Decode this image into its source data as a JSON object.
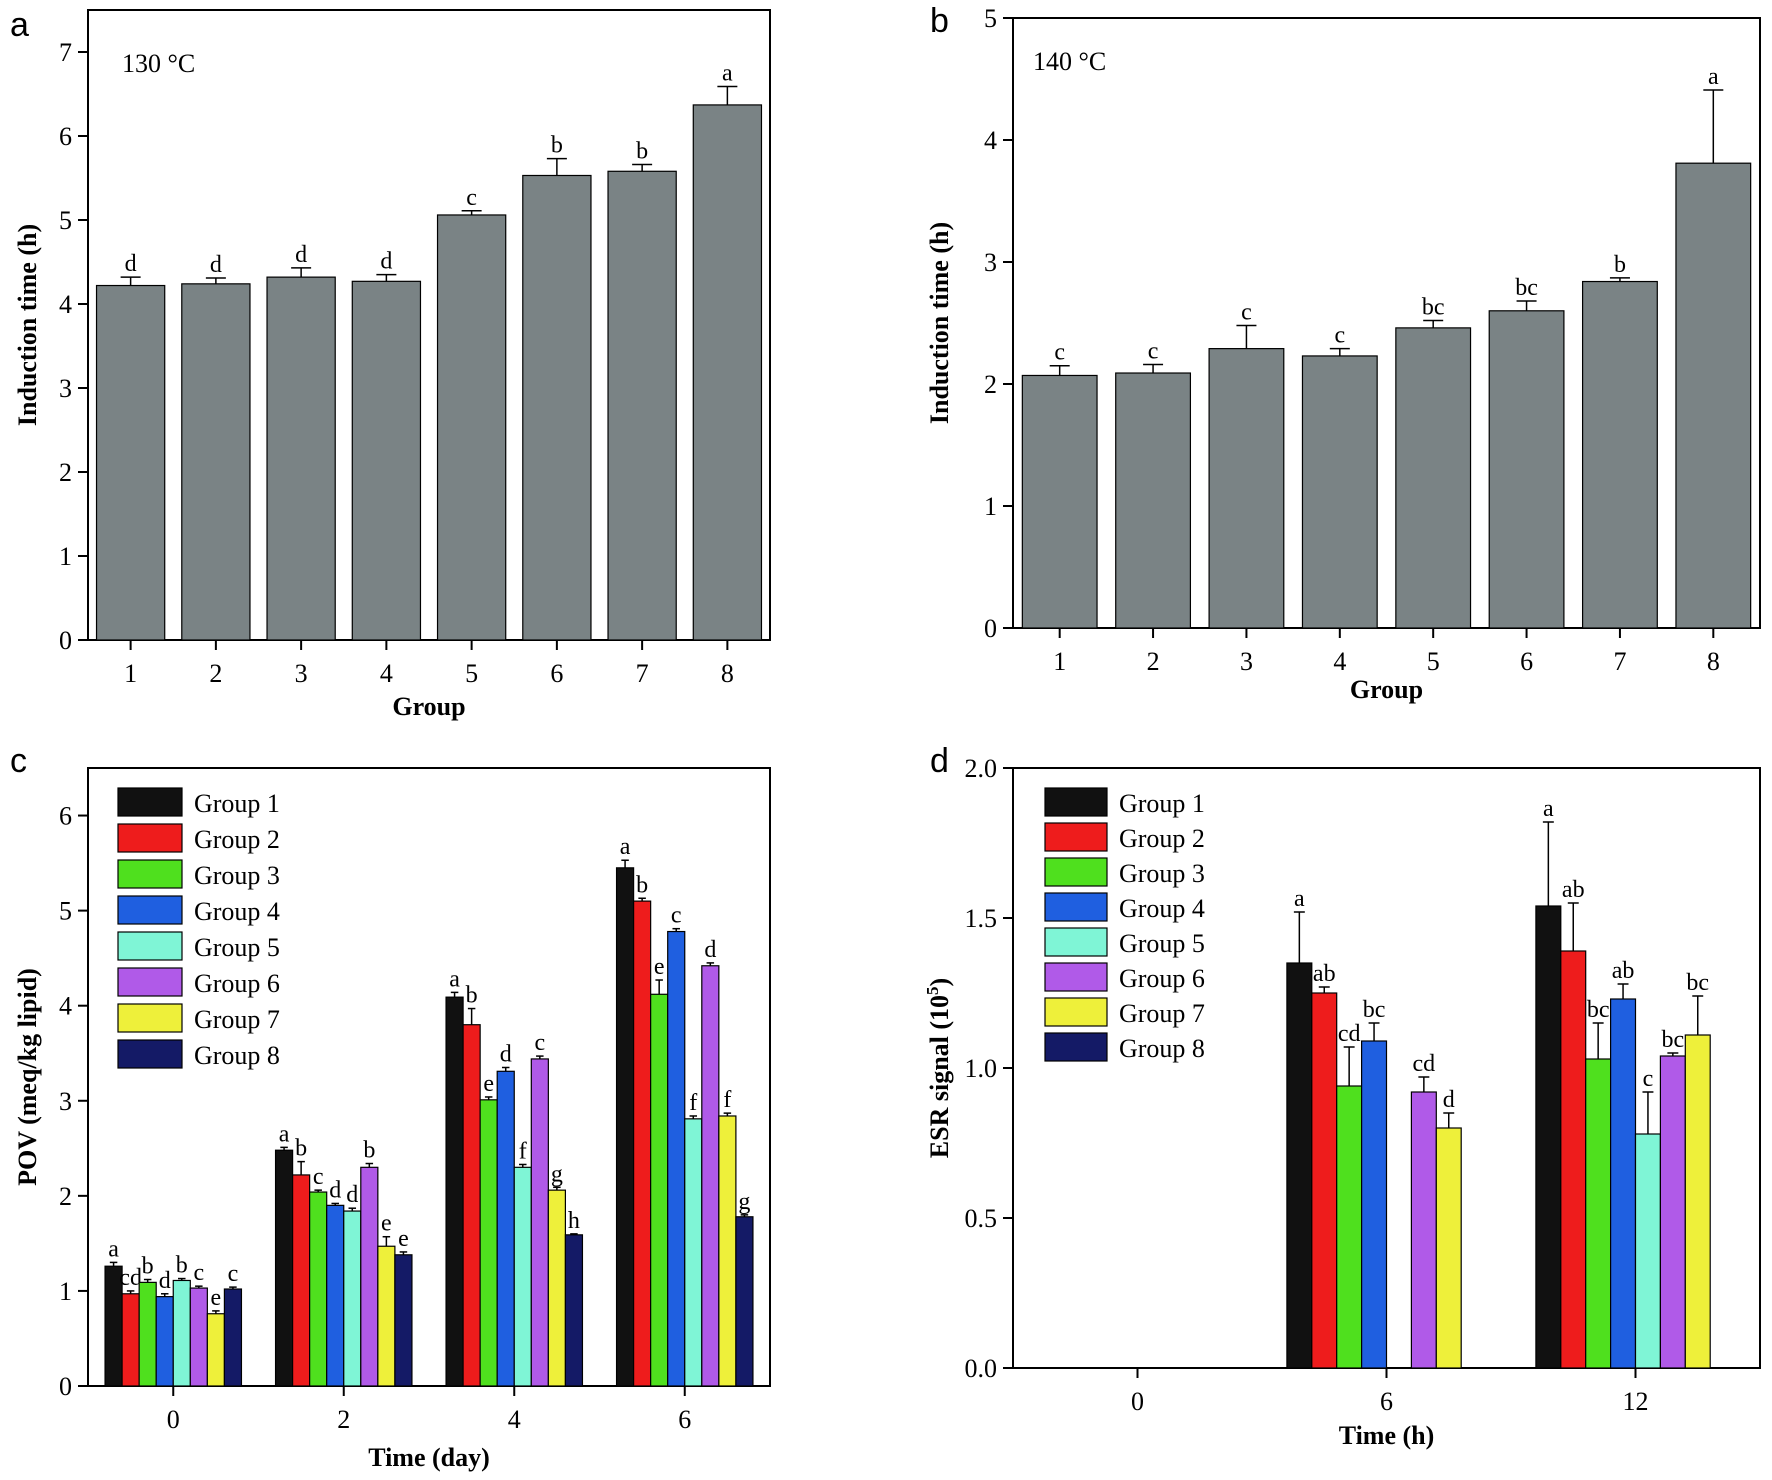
{
  "chart_data": [
    {
      "panel": "a",
      "type": "bar",
      "annotation": "130 °C",
      "xlabel": "Group",
      "ylabel": "Induction time (h)",
      "ylim": [
        0,
        7.5
      ],
      "yticks": [
        0,
        1,
        2,
        3,
        4,
        5,
        6,
        7
      ],
      "categories": [
        "1",
        "2",
        "3",
        "4",
        "5",
        "6",
        "7",
        "8"
      ],
      "series": [
        {
          "color": "#7a8385",
          "values": [
            4.22,
            4.24,
            4.32,
            4.27,
            5.06,
            5.53,
            5.58,
            6.37
          ],
          "errors": [
            0.1,
            0.07,
            0.11,
            0.08,
            0.05,
            0.2,
            0.08,
            0.22
          ],
          "labels": [
            "d",
            "d",
            "d",
            "d",
            "c",
            "b",
            "b",
            "a"
          ]
        }
      ],
      "legend": false
    },
    {
      "panel": "b",
      "type": "bar",
      "annotation": "140 °C",
      "xlabel": "Group",
      "ylabel": "Induction time (h)",
      "ylim": [
        0,
        5
      ],
      "yticks": [
        0,
        1,
        2,
        3,
        4,
        5
      ],
      "categories": [
        "1",
        "2",
        "3",
        "4",
        "5",
        "6",
        "7",
        "8"
      ],
      "series": [
        {
          "color": "#7a8385",
          "values": [
            2.07,
            2.09,
            2.29,
            2.23,
            2.46,
            2.6,
            2.84,
            3.81
          ],
          "errors": [
            0.08,
            0.07,
            0.19,
            0.06,
            0.06,
            0.08,
            0.03,
            0.6
          ],
          "labels": [
            "c",
            "c",
            "c",
            "c",
            "bc",
            "bc",
            "b",
            "a"
          ]
        }
      ],
      "legend": false
    },
    {
      "panel": "c",
      "type": "bar",
      "xlabel": "Time (day)",
      "ylabel": "POV (meq/kg lipid)",
      "ylim": [
        0,
        6.5
      ],
      "yticks": [
        0,
        1,
        2,
        3,
        4,
        5,
        6
      ],
      "categories": [
        "0",
        "2",
        "4",
        "6"
      ],
      "legend": "top-left",
      "series": [
        {
          "name": "Group 1",
          "color": "#111111",
          "values": [
            1.26,
            2.48,
            4.09,
            5.45
          ],
          "errors": [
            0.04,
            0.03,
            0.05,
            0.08
          ],
          "labels": [
            "a",
            "a",
            "a",
            "a"
          ]
        },
        {
          "name": "Group 2",
          "color": "#ee1c1c",
          "values": [
            0.97,
            2.22,
            3.8,
            5.1
          ],
          "errors": [
            0.03,
            0.14,
            0.17,
            0.03
          ],
          "labels": [
            "cd",
            "b",
            "b",
            "b"
          ]
        },
        {
          "name": "Group 3",
          "color": "#4fe01e",
          "values": [
            1.09,
            2.04,
            3.01,
            4.12
          ],
          "errors": [
            0.03,
            0.02,
            0.03,
            0.15
          ],
          "labels": [
            "b",
            "c",
            "e",
            "e"
          ]
        },
        {
          "name": "Group 4",
          "color": "#1f5fe0",
          "values": [
            0.94,
            1.9,
            3.31,
            4.78
          ],
          "errors": [
            0.03,
            0.02,
            0.04,
            0.03
          ],
          "labels": [
            "d",
            "d",
            "d",
            "c"
          ]
        },
        {
          "name": "Group 5",
          "color": "#7ff5d6",
          "values": [
            1.11,
            1.84,
            2.3,
            2.81
          ],
          "errors": [
            0.02,
            0.03,
            0.03,
            0.03
          ],
          "labels": [
            "b",
            "d",
            "f",
            "f"
          ]
        },
        {
          "name": "Group 6",
          "color": "#b05ae8",
          "values": [
            1.03,
            2.3,
            3.44,
            4.42
          ],
          "errors": [
            0.02,
            0.04,
            0.03,
            0.03
          ],
          "labels": [
            "c",
            "b",
            "c",
            "d"
          ]
        },
        {
          "name": "Group 7",
          "color": "#eef03a",
          "values": [
            0.76,
            1.47,
            2.06,
            2.84
          ],
          "errors": [
            0.03,
            0.1,
            0.03,
            0.03
          ],
          "labels": [
            "e",
            "e",
            "g",
            "f"
          ]
        },
        {
          "name": "Group 8",
          "color": "#141a66",
          "values": [
            1.02,
            1.38,
            1.59,
            1.78
          ],
          "errors": [
            0.02,
            0.03,
            0.01,
            0.02
          ],
          "labels": [
            "c",
            "e",
            "h",
            "g"
          ]
        }
      ]
    },
    {
      "panel": "d",
      "type": "bar",
      "xlabel": "Time (h)",
      "ylabel": "ESR signal (10",
      "ylabel_sup": "5",
      "ylabel_end": ")",
      "ylim": [
        0,
        2.0
      ],
      "yticks": [
        "0.0",
        "0.5",
        "1.0",
        "1.5",
        "2.0"
      ],
      "categories": [
        "0",
        "6",
        "12"
      ],
      "legend": "top-left",
      "series": [
        {
          "name": "Group 1",
          "color": "#111111",
          "values": [
            null,
            1.35,
            1.54
          ],
          "errors": [
            null,
            0.17,
            0.28
          ],
          "labels": [
            "",
            "a",
            "a"
          ]
        },
        {
          "name": "Group 2",
          "color": "#ee1c1c",
          "values": [
            null,
            1.25,
            1.39
          ],
          "errors": [
            null,
            0.02,
            0.16
          ],
          "labels": [
            "",
            "ab",
            "ab"
          ]
        },
        {
          "name": "Group 3",
          "color": "#4fe01e",
          "values": [
            null,
            0.94,
            1.03
          ],
          "errors": [
            null,
            0.13,
            0.12
          ],
          "labels": [
            "",
            "cd",
            "bc"
          ]
        },
        {
          "name": "Group 4",
          "color": "#1f5fe0",
          "values": [
            null,
            1.09,
            1.23
          ],
          "errors": [
            null,
            0.06,
            0.05
          ],
          "labels": [
            "",
            "bc",
            "ab"
          ]
        },
        {
          "name": "Group 5",
          "color": "#7ff5d6",
          "values": [
            null,
            null,
            0.78
          ],
          "errors": [
            null,
            null,
            0.14
          ],
          "labels": [
            "",
            "",
            "c"
          ]
        },
        {
          "name": "Group 6",
          "color": "#b05ae8",
          "values": [
            null,
            0.92,
            1.04
          ],
          "errors": [
            null,
            0.05,
            0.01
          ],
          "labels": [
            "",
            "cd",
            "bc"
          ]
        },
        {
          "name": "Group 7",
          "color": "#eef03a",
          "values": [
            null,
            0.8,
            1.11
          ],
          "errors": [
            null,
            0.05,
            0.13
          ],
          "labels": [
            "",
            "d",
            "bc"
          ]
        },
        {
          "name": "Group 8",
          "color": "#141a66",
          "values": [
            null,
            null,
            null
          ],
          "errors": [
            null,
            null,
            null
          ],
          "labels": [
            "",
            "",
            ""
          ]
        }
      ]
    }
  ]
}
